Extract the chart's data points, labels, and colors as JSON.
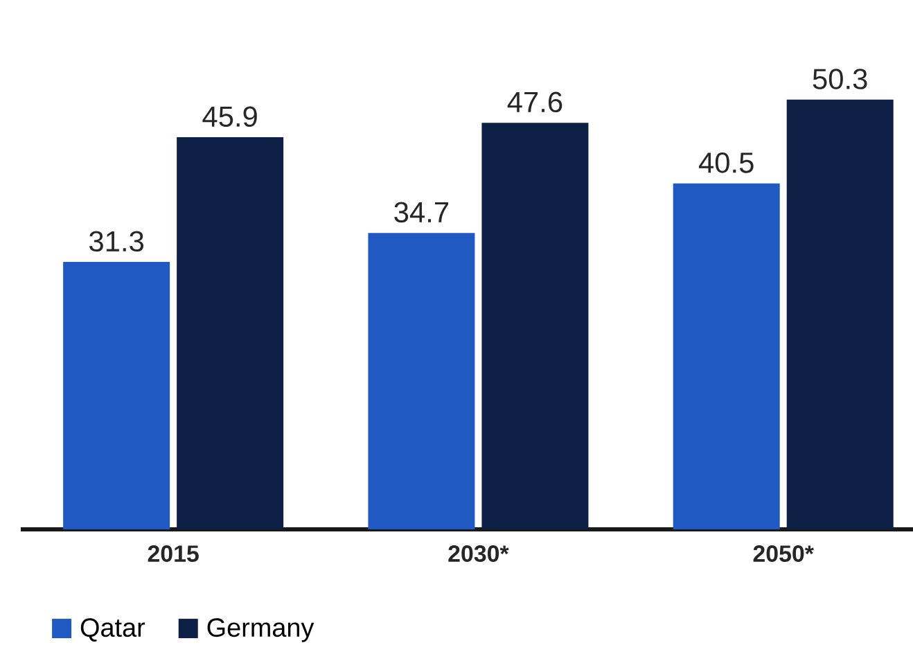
{
  "chart_data": {
    "type": "bar",
    "categories": [
      "2015",
      "2030*",
      "2050*"
    ],
    "series": [
      {
        "name": "Qatar",
        "color": "#2159c2",
        "values": [
          31.3,
          34.7,
          40.5
        ]
      },
      {
        "name": "Germany",
        "color": "#0d1f45",
        "values": [
          45.9,
          47.6,
          50.3
        ]
      }
    ],
    "tick_labels": "x",
    "data_labels": true,
    "legend": "bottom left"
  }
}
